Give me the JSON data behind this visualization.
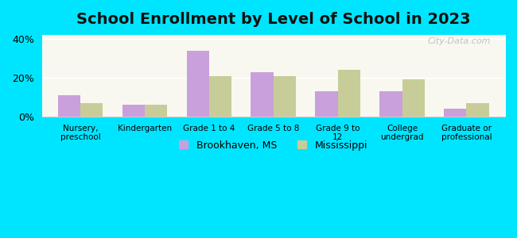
{
  "title": "School Enrollment by Level of School in 2023",
  "categories": [
    "Nursery,\npreschool",
    "Kindergarten",
    "Grade 1 to 4",
    "Grade 5 to 8",
    "Grade 9 to\n12",
    "College\nundergrad",
    "Graduate or\nprofessional"
  ],
  "brookhaven": [
    11,
    6,
    34,
    23,
    13,
    13,
    4
  ],
  "mississippi": [
    7,
    6,
    21,
    21,
    24,
    19,
    7
  ],
  "brookhaven_color": "#c9a0dc",
  "mississippi_color": "#c8cc99",
  "background_outer": "#00e5ff",
  "yticks": [
    0,
    20,
    40
  ],
  "ytick_labels": [
    "0%",
    "20%",
    "40%"
  ],
  "legend_brookhaven": "Brookhaven, MS",
  "legend_mississippi": "Mississippi",
  "watermark": "City-Data.com",
  "title_fontsize": 14,
  "bar_width": 0.35,
  "ylim": [
    0,
    42
  ]
}
